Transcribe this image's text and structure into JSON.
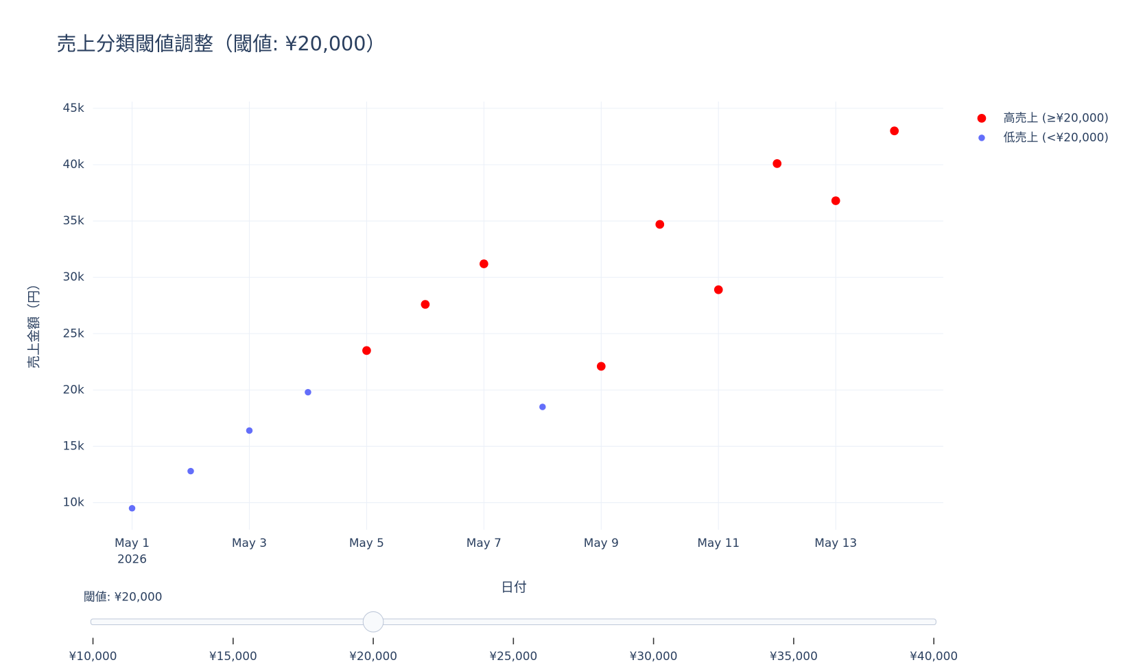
{
  "chart_data": {
    "type": "scatter",
    "title": "売上分類閾値調整（閾値: ¥20,000）",
    "x_label": "日付",
    "y_label": "売上金額（円）",
    "x": [
      "2026-05-01",
      "2026-05-02",
      "2026-05-03",
      "2026-05-04",
      "2026-05-05",
      "2026-05-06",
      "2026-05-07",
      "2026-05-08",
      "2026-05-09",
      "2026-05-10",
      "2026-05-11",
      "2026-05-12",
      "2026-05-13",
      "2026-05-14"
    ],
    "series": [
      {
        "name": "高売上 (≥¥20,000)",
        "color": "#ff0000",
        "values": [
          null,
          null,
          null,
          null,
          23500,
          27600,
          31200,
          null,
          22100,
          34700,
          28900,
          40100,
          36800,
          43000
        ]
      },
      {
        "name": "低売上 (<¥20,000)",
        "color": "#636efa",
        "values": [
          9500,
          12800,
          16400,
          19800,
          null,
          null,
          null,
          18500,
          null,
          null,
          null,
          null,
          null,
          null
        ]
      }
    ],
    "xlim": [
      "2026-04-30T08:00",
      "2026-05-14T20:00"
    ],
    "xticks": [
      {
        "value": "2026-05-01",
        "label": "May 1"
      },
      {
        "value": "2026-05-03",
        "label": "May 3"
      },
      {
        "value": "2026-05-05",
        "label": "May 5"
      },
      {
        "value": "2026-05-07",
        "label": "May 7"
      },
      {
        "value": "2026-05-09",
        "label": "May 9"
      },
      {
        "value": "2026-05-11",
        "label": "May 11"
      },
      {
        "value": "2026-05-13",
        "label": "May 13"
      }
    ],
    "x_year_label": "2026",
    "ylim": [
      7600,
      45600
    ],
    "yticks": [
      {
        "value": 10000,
        "label": "10k"
      },
      {
        "value": 15000,
        "label": "15k"
      },
      {
        "value": 20000,
        "label": "20k"
      },
      {
        "value": 25000,
        "label": "25k"
      },
      {
        "value": 30000,
        "label": "30k"
      },
      {
        "value": 35000,
        "label": "35k"
      },
      {
        "value": 40000,
        "label": "40k"
      },
      {
        "value": 45000,
        "label": "45k"
      }
    ],
    "grid": true,
    "legend": "top-right",
    "slider": {
      "current_label": "閾値: ¥20,000",
      "value": 20000,
      "range": [
        10000,
        40000
      ],
      "ticks": [
        {
          "value": 10000,
          "label": "¥10,000"
        },
        {
          "value": 15000,
          "label": "¥15,000"
        },
        {
          "value": 20000,
          "label": "¥20,000"
        },
        {
          "value": 25000,
          "label": "¥25,000"
        },
        {
          "value": 30000,
          "label": "¥30,000"
        },
        {
          "value": 35000,
          "label": "¥35,000"
        },
        {
          "value": 40000,
          "label": "¥40,000"
        }
      ]
    }
  }
}
